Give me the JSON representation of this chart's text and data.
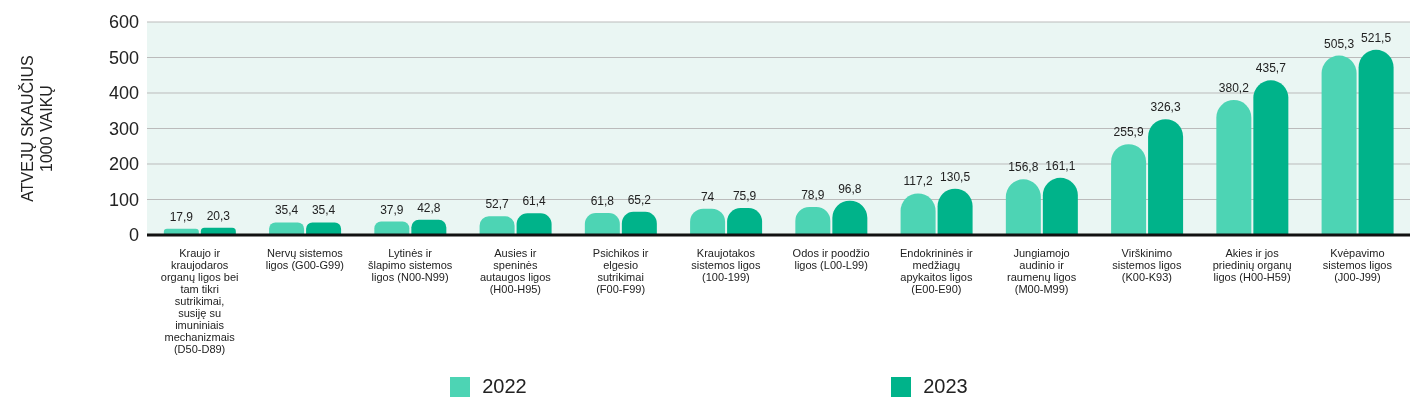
{
  "chart_data": {
    "type": "bar",
    "ylabel": "ATVEJŲ SKAUČIUS 1000 VAIKŲ",
    "categories": [
      "Kraujo ir kraujodaros organų ligos bei tam tikri sutrikimai, susiję su imuniniais mechanizmais (D50-D89)",
      "Nervų sistemos ligos (G00-G99)",
      "Lytinės ir šlapimo sistemos ligos (N00-N99)",
      "Ausies ir speninės autaugos ligos (H00-H95)",
      "Psichikos ir elgesio sutrikimai (F00-F99)",
      "Kraujotakos sistemos ligos (100-199)",
      "Odos ir poodžio ligos (L00-L99)",
      "Endokrininės ir medžiagų apykaitos ligos (E00-E90)",
      "Jungiamojo audinio ir raumenų ligos (M00-M99)",
      "Virškinimo sistemos ligos (K00-K93)",
      "Akies ir jos priedinių organų ligos (H00-H59)",
      "Kvėpavimo sistemos ligos (J00-J99)"
    ],
    "series": [
      {
        "name": "2022",
        "color": "#4dd4b4",
        "values": [
          17.9,
          35.4,
          37.9,
          52.7,
          61.8,
          74,
          78.9,
          117.2,
          156.8,
          255.9,
          380.2,
          505.3
        ],
        "value_labels": [
          "17,9",
          "35,4",
          "37,9",
          "52,7",
          "61,8",
          "74",
          "78,9",
          "117,2",
          "156,8",
          "255,9",
          "380,2",
          "505,3"
        ]
      },
      {
        "name": "2023",
        "color": "#00b38a",
        "values": [
          20.3,
          35.4,
          42.8,
          61.4,
          65.2,
          75.9,
          96.8,
          130.5,
          161.1,
          326.3,
          435.7,
          521.5
        ],
        "value_labels": [
          "20,3",
          "35,4",
          "42,8",
          "61,4",
          "65,2",
          "75,9",
          "96,8",
          "130,5",
          "161,1",
          "326,3",
          "435,7",
          "521,5"
        ]
      }
    ],
    "ylim": [
      0,
      600
    ],
    "yticks": [
      0,
      100,
      200,
      300,
      400,
      500,
      600
    ],
    "grid": "y",
    "legend": "bottom"
  }
}
